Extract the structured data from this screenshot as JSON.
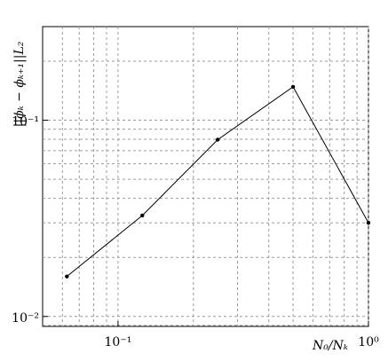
{
  "chart_data": {
    "type": "line",
    "x_label": "N₀/Nₖ",
    "y_label": "||ϕₖ − ϕₖ₊₁||L₂",
    "x": [
      0.0625,
      0.125,
      0.25,
      0.5,
      1
    ],
    "series": [
      {
        "color": "#000000",
        "values": [
          0.016,
          0.0327,
          0.0796,
          0.148,
          0.03
        ]
      }
    ],
    "xlim": [
      0.05,
      1
    ],
    "ylim": [
      0.0089,
      0.3
    ],
    "xticks": [
      {
        "value": 0.1,
        "label": "10⁻¹"
      },
      {
        "value": 1,
        "label": "10⁰"
      }
    ],
    "yticks": [
      {
        "value": 0.01,
        "label": "10⁻²"
      },
      {
        "value": 0.1,
        "label": "10⁻¹"
      }
    ],
    "log_x": true,
    "log_y": true,
    "grid": true
  }
}
